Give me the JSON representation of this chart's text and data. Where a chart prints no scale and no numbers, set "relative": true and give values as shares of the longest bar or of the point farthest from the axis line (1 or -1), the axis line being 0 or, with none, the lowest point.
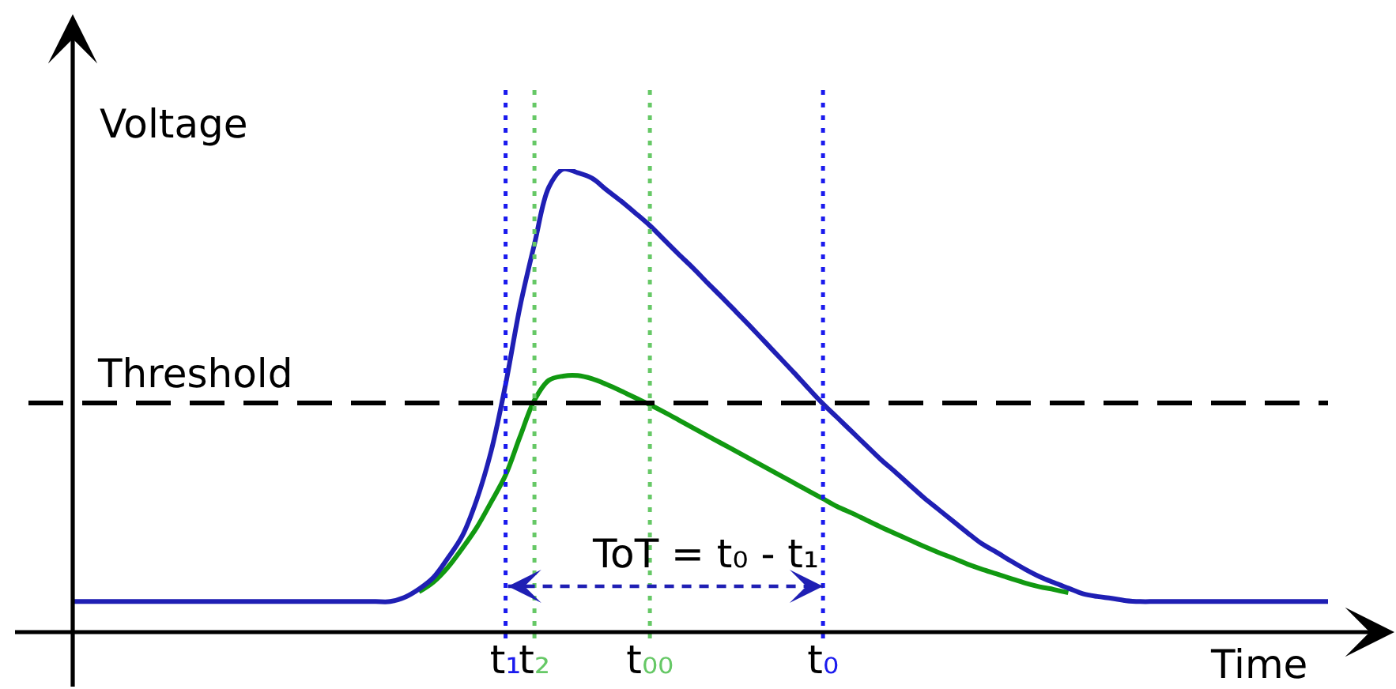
{
  "chart_data": {
    "type": "line",
    "relative": true,
    "xlabel": "Time",
    "ylabel": "Voltage",
    "categories": [
      null,
      null,
      null,
      null,
      null,
      null,
      null,
      null,
      null,
      null,
      null,
      null,
      null,
      null,
      null,
      null,
      null,
      null,
      null,
      null,
      null,
      null,
      null,
      null,
      null,
      null,
      null,
      null,
      null,
      null,
      "t₁",
      null,
      "t₂",
      null,
      null,
      null,
      null,
      null,
      null,
      null,
      "t₀₀",
      null,
      null,
      null,
      null,
      null,
      null,
      null,
      null,
      null,
      null,
      null,
      "t₀",
      null,
      null,
      null,
      null,
      null,
      null,
      null,
      null,
      null,
      null,
      null,
      null,
      null,
      null,
      null,
      null,
      null,
      null,
      null,
      null,
      null,
      null,
      null,
      null,
      null,
      null,
      null,
      null,
      null,
      null,
      null,
      null,
      null,
      null,
      null
    ],
    "series": [
      {
        "color": "#119911",
        "values": [
          null,
          null,
          null,
          null,
          null,
          null,
          null,
          null,
          null,
          null,
          null,
          null,
          null,
          null,
          null,
          null,
          null,
          null,
          null,
          null,
          null,
          null,
          null,
          null,
          0.087,
          0.108,
          0.14,
          0.181,
          0.226,
          0.281,
          0.339,
          0.422,
          0.501,
          0.544,
          0.553,
          0.554,
          0.547,
          0.535,
          0.521,
          0.506,
          0.491,
          0.475,
          0.458,
          0.441,
          0.424,
          0.407,
          0.39,
          0.373,
          0.356,
          0.339,
          0.322,
          0.305,
          0.288,
          0.271,
          0.257,
          0.242,
          0.227,
          0.213,
          0.199,
          0.185,
          0.172,
          0.16,
          0.147,
          0.136,
          0.126,
          0.116,
          0.106,
          0.098,
          0.092,
          0.085,
          null,
          null,
          null,
          null,
          null,
          null,
          null,
          null,
          null,
          null,
          null,
          null,
          null,
          null,
          null,
          null,
          null,
          null
        ]
      },
      {
        "color": "#1f1fb4",
        "values": [
          0.066,
          0.066,
          0.066,
          0.066,
          0.066,
          0.066,
          0.066,
          0.066,
          0.066,
          0.066,
          0.066,
          0.066,
          0.066,
          0.066,
          0.066,
          0.066,
          0.066,
          0.066,
          0.066,
          0.066,
          0.066,
          0.066,
          0.066,
          0.075,
          0.093,
          0.118,
          0.16,
          0.208,
          0.286,
          0.391,
          0.535,
          0.703,
          0.838,
          0.961,
          1.0,
          0.992,
          0.98,
          0.955,
          0.931,
          0.905,
          0.878,
          0.847,
          0.816,
          0.786,
          0.754,
          0.723,
          0.691,
          0.659,
          0.626,
          0.593,
          0.56,
          0.526,
          0.493,
          0.463,
          0.433,
          0.403,
          0.373,
          0.346,
          0.318,
          0.29,
          0.265,
          0.24,
          0.215,
          0.191,
          0.173,
          0.154,
          0.136,
          0.12,
          0.107,
          0.095,
          0.083,
          0.077,
          0.073,
          0.068,
          0.066,
          0.066,
          0.066,
          0.066,
          0.066,
          0.066,
          0.066,
          0.066,
          0.066,
          0.066,
          0.066,
          0.066,
          0.066,
          0.066
        ]
      }
    ],
    "ref_lines": [
      {
        "axis": "y",
        "value": 0.495,
        "label": "Threshold",
        "color": "#000000",
        "line_style": "dashed"
      },
      {
        "axis": "x",
        "value": "t₁",
        "color": "#1a1aee",
        "line_style": "dotted"
      },
      {
        "axis": "x",
        "value": "t₂",
        "color": "#66c866",
        "line_style": "dotted"
      },
      {
        "axis": "x",
        "value": "t₀₀",
        "color": "#66c866",
        "line_style": "dotted"
      },
      {
        "axis": "x",
        "value": "t₀",
        "color": "#1a1aee",
        "line_style": "dotted"
      }
    ],
    "annotations": [
      "ToT = t₀ - t₁"
    ]
  }
}
